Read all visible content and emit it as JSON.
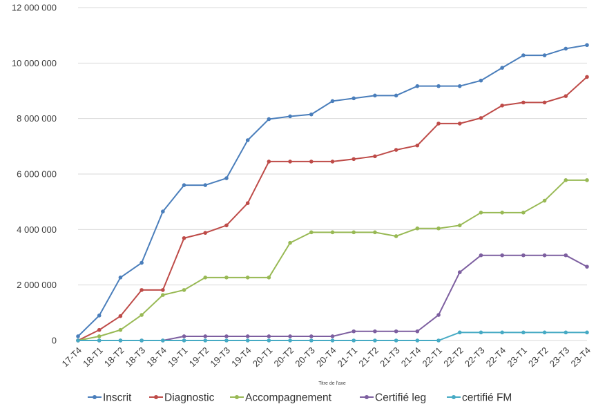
{
  "chart_data": {
    "type": "line",
    "title": "",
    "xlabel": "Titre de l'axe",
    "ylabel": "",
    "ylim": [
      0,
      12000000
    ],
    "yticks": [
      0,
      2000000,
      4000000,
      6000000,
      8000000,
      10000000,
      12000000
    ],
    "ytick_labels": [
      "0",
      "2 000 000",
      "4 000 000",
      "6 000 000",
      "8 000 000",
      "10 000 000",
      "12 000 000"
    ],
    "grid": "horizontal",
    "legend_position": "bottom",
    "categories": [
      "17-T4",
      "18-T1",
      "18-T2",
      "18-T3",
      "18-T4",
      "19-T1",
      "19-T2",
      "19-T3",
      "19-T4",
      "20-T1",
      "20-T2",
      "20-T3",
      "20-T4",
      "21-T1",
      "21-T2",
      "21-T3",
      "21-T4",
      "22-T1",
      "22-T2",
      "22-T3",
      "22-T4",
      "23-T1",
      "23-T2",
      "23-T3",
      "23-T4"
    ],
    "series": [
      {
        "name": "Inscrit",
        "color": "#4a7ebb",
        "values": [
          150000,
          900000,
          2270000,
          2800000,
          4650000,
          5600000,
          5600000,
          5850000,
          7220000,
          7980000,
          8080000,
          8150000,
          8630000,
          8730000,
          8830000,
          8830000,
          9170000,
          9170000,
          9170000,
          9370000,
          9830000,
          10280000,
          10280000,
          10520000,
          10650000
        ]
      },
      {
        "name": "Diagnostic",
        "color": "#be4b48",
        "values": [
          0,
          380000,
          880000,
          1820000,
          1820000,
          3690000,
          3880000,
          4150000,
          4950000,
          6450000,
          6450000,
          6450000,
          6450000,
          6540000,
          6640000,
          6870000,
          7030000,
          7820000,
          7820000,
          8020000,
          8470000,
          8580000,
          8580000,
          8810000,
          9500000
        ]
      },
      {
        "name": "Accompagnement",
        "color": "#98b954",
        "values": [
          0,
          150000,
          380000,
          920000,
          1640000,
          1820000,
          2270000,
          2270000,
          2270000,
          2270000,
          3520000,
          3900000,
          3900000,
          3900000,
          3900000,
          3760000,
          4040000,
          4040000,
          4150000,
          4610000,
          4610000,
          4610000,
          5040000,
          5780000,
          5780000
        ]
      },
      {
        "name": "Certifié leg",
        "color": "#7d5fa0",
        "values": [
          0,
          0,
          0,
          0,
          0,
          150000,
          150000,
          150000,
          150000,
          150000,
          150000,
          150000,
          150000,
          330000,
          330000,
          330000,
          330000,
          920000,
          2460000,
          3070000,
          3070000,
          3070000,
          3070000,
          3070000,
          2660000
        ]
      },
      {
        "name": "certifié FM",
        "color": "#46aac4",
        "values": [
          0,
          0,
          0,
          0,
          0,
          0,
          0,
          0,
          0,
          0,
          0,
          0,
          0,
          0,
          0,
          0,
          0,
          0,
          290000,
          290000,
          290000,
          290000,
          290000,
          290000,
          290000
        ]
      }
    ]
  }
}
